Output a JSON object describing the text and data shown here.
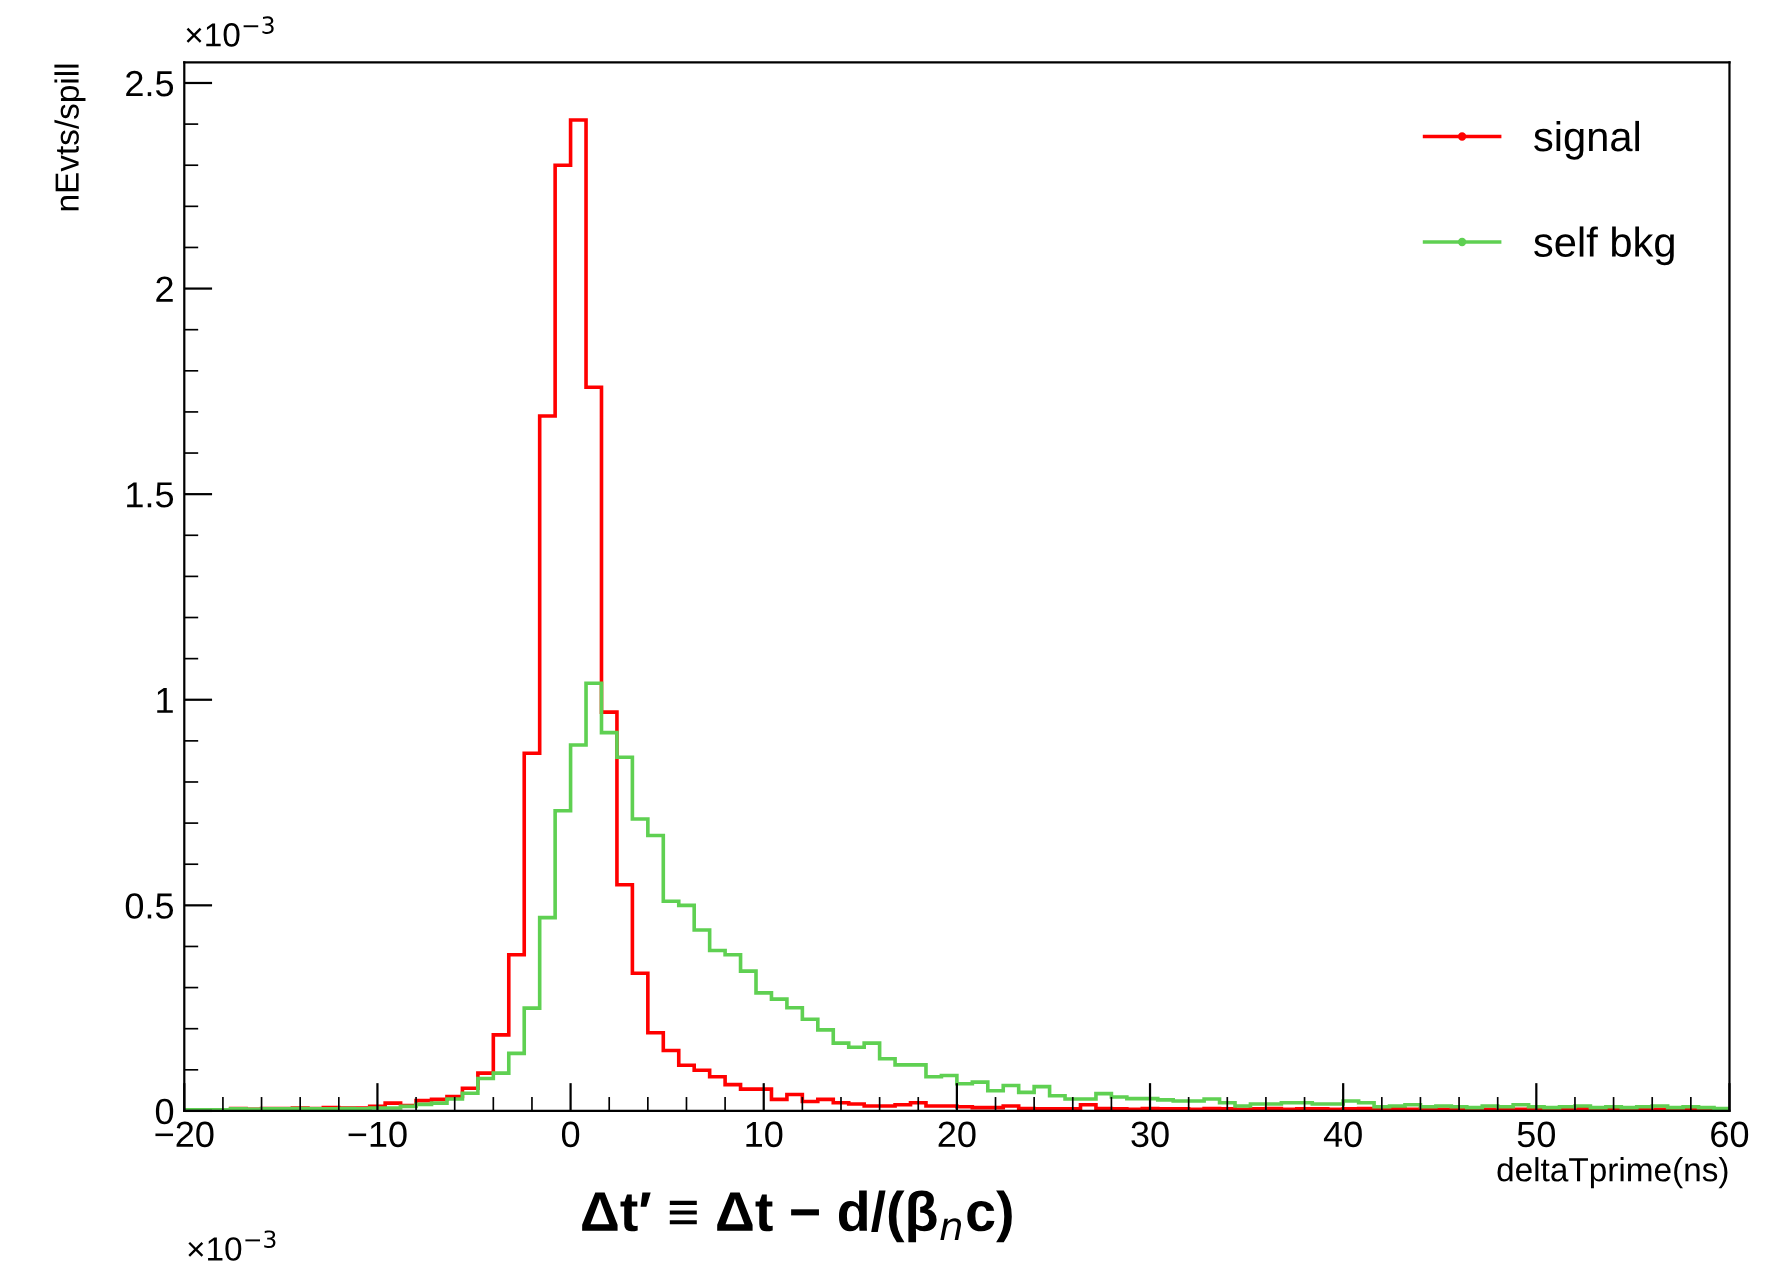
{
  "chart_data": {
    "type": "histogram",
    "xlabel": "deltaTprime(ns)",
    "ylabel": "nEvts/spill",
    "annotations": [
      "×10$^{−3}$",
      "Δt′ ≡ Δt − d/(β$_{n}$c)",
      "×10$^{−3}$"
    ],
    "bins": [
      -20,
      -19.2,
      -18.4,
      -17.6,
      -16.8,
      -16,
      -15.2,
      -14.4,
      -13.6,
      -12.8,
      -12,
      -11.2,
      -10.4,
      -9.6,
      -8.8,
      -8,
      -7.2,
      -6.4,
      -5.6,
      -4.8,
      -4,
      -3.2,
      -2.4,
      -1.6,
      -0.8,
      0,
      0.8,
      1.6,
      2.4,
      3.2,
      4,
      4.8,
      5.6,
      6.4,
      7.2,
      8,
      8.8,
      9.6,
      10.4,
      11.2,
      12,
      12.8,
      13.6,
      14.4,
      15.2,
      16,
      16.8,
      17.6,
      18.4,
      19.2,
      20,
      20.8,
      21.6,
      22.4,
      23.2,
      24,
      24.8,
      25.6,
      26.4,
      27.2,
      28,
      28.8,
      29.6,
      30.4,
      31.2,
      32,
      32.8,
      33.6,
      34.4,
      35.2,
      36,
      36.8,
      37.6,
      38.4,
      39.2,
      40,
      40.8,
      41.6,
      42.4,
      43.2,
      44,
      44.8,
      45.6,
      46.4,
      47.2,
      48,
      48.8,
      49.6,
      50.4,
      51.2,
      52,
      52.8,
      53.6,
      54.4,
      55.2,
      56,
      56.8,
      57.6,
      58.4,
      59.2,
      60
    ],
    "series": [
      {
        "name": "signal",
        "color": "#ff0000",
        "values": [
          0.002,
          0.002,
          0.002,
          0.006,
          0.004,
          0.006,
          0.006,
          0.007,
          0.006,
          0.008,
          0.007,
          0.007,
          0.011,
          0.019,
          0.013,
          0.025,
          0.028,
          0.035,
          0.055,
          0.092,
          0.185,
          0.38,
          0.87,
          1.69,
          2.3,
          2.41,
          1.76,
          0.97,
          0.55,
          0.335,
          0.19,
          0.147,
          0.111,
          0.099,
          0.083,
          0.064,
          0.053,
          0.053,
          0.028,
          0.04,
          0.023,
          0.028,
          0.02,
          0.017,
          0.012,
          0.012,
          0.015,
          0.02,
          0.012,
          0.012,
          0.01,
          0.008,
          0.008,
          0.012,
          0.006,
          0.005,
          0.005,
          0.005,
          0.015,
          0.006,
          0.005,
          0.004,
          0.006,
          0.005,
          0.005,
          0.004,
          0.006,
          0.005,
          0.004,
          0.005,
          0.006,
          0.004,
          0.005,
          0.005,
          0.004,
          0.005,
          0.006,
          0.004,
          0.005,
          0.004,
          0.005,
          0.004,
          0.006,
          0.005,
          0.004,
          0.005,
          0.004,
          0.005,
          0.006,
          0.004,
          0.005,
          0.004,
          0.005,
          0.004,
          0.005,
          0.004,
          0.006,
          0.005,
          0.004,
          0.003
        ]
      },
      {
        "name": "self bkg",
        "color": "#5fd052",
        "values": [
          0.003,
          0.003,
          0.003,
          0.005,
          0.004,
          0.005,
          0.005,
          0.006,
          0.005,
          0.005,
          0.006,
          0.005,
          0.007,
          0.007,
          0.011,
          0.016,
          0.019,
          0.029,
          0.043,
          0.079,
          0.092,
          0.14,
          0.25,
          0.47,
          0.73,
          0.89,
          1.04,
          0.92,
          0.86,
          0.71,
          0.67,
          0.51,
          0.5,
          0.44,
          0.39,
          0.38,
          0.34,
          0.287,
          0.272,
          0.251,
          0.223,
          0.197,
          0.165,
          0.155,
          0.165,
          0.127,
          0.112,
          0.112,
          0.083,
          0.086,
          0.066,
          0.07,
          0.049,
          0.062,
          0.045,
          0.059,
          0.037,
          0.029,
          0.029,
          0.042,
          0.034,
          0.03,
          0.03,
          0.027,
          0.024,
          0.024,
          0.029,
          0.02,
          0.012,
          0.017,
          0.017,
          0.02,
          0.02,
          0.017,
          0.017,
          0.024,
          0.02,
          0.01,
          0.012,
          0.015,
          0.01,
          0.012,
          0.01,
          0.008,
          0.012,
          0.01,
          0.015,
          0.01,
          0.008,
          0.01,
          0.012,
          0.008,
          0.01,
          0.008,
          0.01,
          0.012,
          0.008,
          0.01,
          0.008,
          0.006
        ]
      }
    ],
    "xlim": [
      -20,
      60
    ],
    "xticks": [
      {
        "value": -20,
        "label": "−20"
      },
      {
        "value": -10,
        "label": "−10"
      },
      0,
      10,
      20,
      30,
      40,
      50,
      60
    ],
    "ylim": [
      0,
      2.55
    ],
    "yticks": [
      0,
      0.5,
      1,
      1.5,
      2,
      2.5
    ],
    "legend": "top right",
    "grid": false
  }
}
